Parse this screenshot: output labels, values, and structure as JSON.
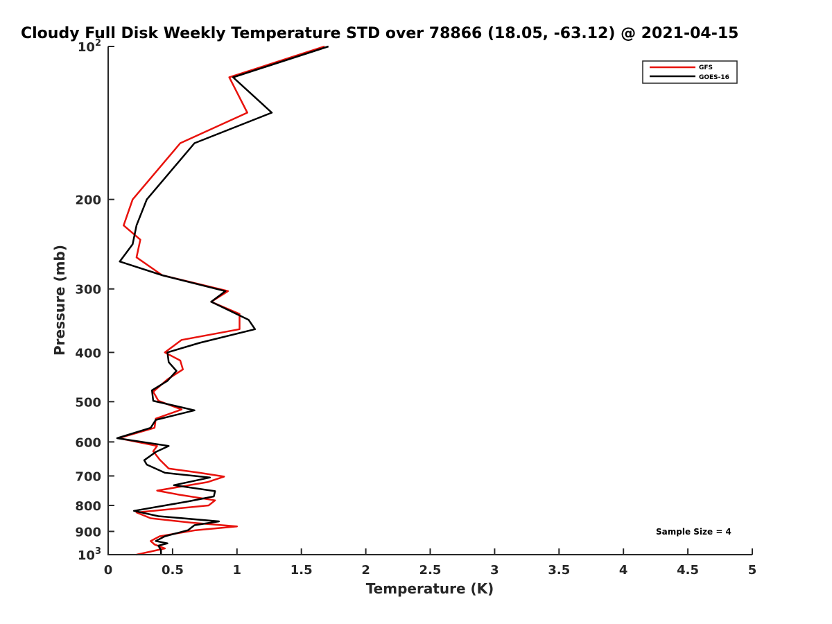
{
  "chart_data": {
    "type": "line",
    "title": "Cloudy Full Disk Weekly Temperature STD over 78866 (18.05, -63.12) @ 2021-04-15",
    "xlabel": "Temperature (K)",
    "ylabel": "Pressure (mb)",
    "xlim": [
      0,
      5
    ],
    "ylim": [
      100,
      1000
    ],
    "y_scale": "log",
    "y_reversed": true,
    "x_ticks": [
      "0",
      "0.5",
      "1",
      "1.5",
      "2",
      "2.5",
      "3",
      "3.5",
      "4",
      "4.5",
      "5"
    ],
    "y_ticks": [
      {
        "value": 100,
        "label": "10",
        "sup": "2"
      },
      {
        "value": 200,
        "label": "200",
        "sup": ""
      },
      {
        "value": 300,
        "label": "300",
        "sup": ""
      },
      {
        "value": 400,
        "label": "400",
        "sup": ""
      },
      {
        "value": 500,
        "label": "500",
        "sup": ""
      },
      {
        "value": 600,
        "label": "600",
        "sup": ""
      },
      {
        "value": 700,
        "label": "700",
        "sup": ""
      },
      {
        "value": 800,
        "label": "800",
        "sup": ""
      },
      {
        "value": 900,
        "label": "900",
        "sup": ""
      },
      {
        "value": 1000,
        "label": "10",
        "sup": "3"
      }
    ],
    "legend_position": "top-right",
    "annotation": "Sample Size = 4",
    "series": [
      {
        "name": "GFS",
        "color": "#e8120c",
        "x": [
          1.68,
          0.94,
          1.08,
          0.56,
          0.19,
          0.12,
          0.25,
          0.22,
          0.42,
          0.93,
          0.8,
          1.02,
          1.02,
          0.57,
          0.44,
          0.56,
          0.58,
          0.46,
          0.35,
          0.39,
          0.57,
          0.37,
          0.36,
          0.08,
          0.38,
          0.35,
          0.4,
          0.47,
          0.71,
          0.9,
          0.77,
          0.38,
          0.55,
          0.83,
          0.78,
          0.22,
          0.33,
          0.64,
          1.0,
          0.68,
          0.4,
          0.33,
          0.36,
          0.44,
          0.22
        ],
        "y": [
          100,
          115,
          135,
          155,
          200,
          225,
          240,
          260,
          282,
          303,
          318,
          336,
          360,
          378,
          400,
          415,
          432,
          452,
          478,
          498,
          518,
          540,
          563,
          590,
          611,
          626,
          650,
          677,
          690,
          702,
          720,
          748,
          762,
          782,
          800,
          826,
          848,
          865,
          880,
          895,
          920,
          940,
          955,
          972,
          1000
        ]
      },
      {
        "name": "GOES-16",
        "color": "#000000",
        "x": [
          1.71,
          0.97,
          1.27,
          0.67,
          0.3,
          0.22,
          0.19,
          0.09,
          0.42,
          0.91,
          0.8,
          1.09,
          1.14,
          0.71,
          0.46,
          0.47,
          0.53,
          0.46,
          0.34,
          0.35,
          0.67,
          0.37,
          0.33,
          0.07,
          0.47,
          0.37,
          0.28,
          0.3,
          0.44,
          0.79,
          0.51,
          0.83,
          0.82,
          0.63,
          0.2,
          0.39,
          0.86,
          0.67,
          0.62,
          0.44,
          0.37,
          0.46,
          0.39,
          0.41,
          0.41
        ],
        "y": [
          100,
          115,
          135,
          155,
          200,
          225,
          245,
          265,
          282,
          303,
          318,
          345,
          360,
          383,
          400,
          418,
          435,
          455,
          475,
          498,
          520,
          543,
          563,
          590,
          611,
          628,
          652,
          665,
          690,
          705,
          730,
          750,
          768,
          785,
          820,
          840,
          860,
          875,
          895,
          920,
          940,
          950,
          960,
          980,
          1000
        ]
      }
    ]
  }
}
